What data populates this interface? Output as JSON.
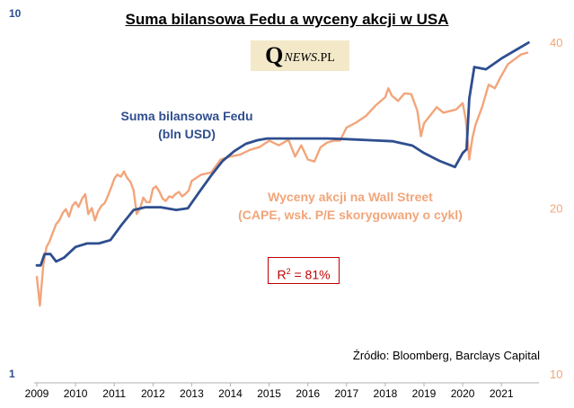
{
  "title": "Suma bilansowa  Fedu a wyceny akcji w USA",
  "logo": {
    "q": "Q",
    "news": "NEWS",
    "pl": ".PL"
  },
  "labels": {
    "fed_line1": "Suma bilansowa Fedu",
    "fed_line2": "(bln USD)",
    "cape_line1": "Wyceny akcji na Wall Street",
    "cape_line2": "(CAPE, wsk. P/E skorygowany o cykl)"
  },
  "r2": {
    "prefix": "R",
    "sup": "2",
    "suffix": " = 81%"
  },
  "source": "Źródło: Bloomberg, Barclays Capital",
  "colors": {
    "fed": "#2e4e8f",
    "cape": "#f2a57a",
    "r2_border": "#c00000"
  },
  "chart_data": {
    "type": "line",
    "x_ticks": [
      "2009",
      "2010",
      "2011",
      "2012",
      "2013",
      "2014",
      "2015",
      "2016",
      "2017",
      "2018",
      "2019",
      "2020",
      "2021"
    ],
    "left_axis": {
      "ticks": [
        "10",
        "1"
      ],
      "scale": "log",
      "range": [
        1,
        10
      ]
    },
    "right_axis": {
      "ticks": [
        "40",
        "20",
        "10"
      ],
      "scale": "log",
      "range": [
        10,
        40
      ]
    },
    "series": [
      {
        "name": "Suma bilansowa Fedu",
        "axis": "left",
        "x": [
          2009.0,
          2009.1,
          2009.2,
          2009.35,
          2009.5,
          2009.7,
          2010.0,
          2010.3,
          2010.6,
          2010.9,
          2011.2,
          2011.5,
          2011.8,
          2012.2,
          2012.6,
          2012.9,
          2013.2,
          2013.5,
          2013.8,
          2014.1,
          2014.4,
          2014.7,
          2014.95,
          2015.3,
          2015.8,
          2016.5,
          2017.0,
          2017.6,
          2018.2,
          2018.7,
          2019.0,
          2019.4,
          2019.8,
          2020.0,
          2020.1,
          2020.17,
          2020.3,
          2020.6,
          2021.0,
          2021.4,
          2021.7
        ],
        "values": [
          2.0,
          2.0,
          2.15,
          2.15,
          2.05,
          2.1,
          2.25,
          2.3,
          2.3,
          2.35,
          2.6,
          2.85,
          2.9,
          2.9,
          2.85,
          2.88,
          3.2,
          3.55,
          3.9,
          4.15,
          4.35,
          4.45,
          4.5,
          4.5,
          4.5,
          4.5,
          4.48,
          4.45,
          4.42,
          4.3,
          4.1,
          3.9,
          3.75,
          4.1,
          4.2,
          5.8,
          7.1,
          7.0,
          7.5,
          7.95,
          8.3
        ]
      },
      {
        "name": "Wyceny akcji na Wall Street",
        "axis": "right",
        "x": [
          2009.0,
          2009.08,
          2009.17,
          2009.25,
          2009.33,
          2009.42,
          2009.5,
          2009.58,
          2009.67,
          2009.75,
          2009.83,
          2009.92,
          2010.0,
          2010.08,
          2010.17,
          2010.25,
          2010.33,
          2010.42,
          2010.5,
          2010.58,
          2010.67,
          2010.75,
          2010.83,
          2010.92,
          2011.0,
          2011.08,
          2011.17,
          2011.25,
          2011.33,
          2011.42,
          2011.5,
          2011.58,
          2011.67,
          2011.75,
          2011.83,
          2011.92,
          2012.0,
          2012.08,
          2012.17,
          2012.25,
          2012.33,
          2012.42,
          2012.5,
          2012.58,
          2012.67,
          2012.75,
          2012.83,
          2012.92,
          2013.0,
          2013.25,
          2013.5,
          2013.75,
          2014.0,
          2014.25,
          2014.5,
          2014.75,
          2015.0,
          2015.25,
          2015.5,
          2015.67,
          2015.83,
          2016.0,
          2016.17,
          2016.33,
          2016.5,
          2016.67,
          2016.83,
          2017.0,
          2017.25,
          2017.5,
          2017.75,
          2018.0,
          2018.08,
          2018.17,
          2018.33,
          2018.5,
          2018.67,
          2018.83,
          2018.92,
          2019.0,
          2019.17,
          2019.33,
          2019.5,
          2019.67,
          2019.83,
          2020.0,
          2020.08,
          2020.17,
          2020.25,
          2020.33,
          2020.5,
          2020.67,
          2020.83,
          2021.0,
          2021.17,
          2021.33,
          2021.5,
          2021.67
        ],
        "values": [
          15.0,
          13.3,
          15.8,
          17.0,
          17.4,
          18.1,
          18.7,
          19.0,
          19.6,
          19.9,
          19.3,
          20.2,
          20.5,
          20.1,
          20.8,
          21.2,
          19.5,
          20.0,
          19.0,
          19.7,
          20.2,
          20.4,
          21.0,
          21.8,
          22.6,
          23.0,
          22.8,
          23.3,
          22.7,
          22.3,
          21.5,
          19.5,
          20.0,
          20.9,
          20.5,
          20.5,
          21.7,
          21.9,
          21.4,
          20.8,
          20.6,
          21.0,
          20.9,
          21.2,
          21.4,
          21.0,
          21.2,
          21.5,
          22.4,
          23.0,
          23.2,
          24.5,
          24.8,
          25.0,
          25.5,
          25.8,
          26.5,
          26.0,
          26.6,
          24.8,
          26.0,
          24.5,
          24.3,
          25.8,
          26.3,
          26.5,
          26.5,
          28.0,
          28.6,
          29.4,
          30.7,
          31.8,
          33.0,
          32.0,
          31.3,
          32.3,
          32.2,
          30.0,
          27.0,
          28.5,
          29.5,
          30.5,
          29.8,
          30.0,
          30.2,
          31.0,
          29.0,
          24.5,
          26.8,
          28.3,
          30.5,
          33.5,
          33.0,
          34.8,
          36.5,
          37.2,
          38.0,
          38.3
        ]
      }
    ]
  }
}
